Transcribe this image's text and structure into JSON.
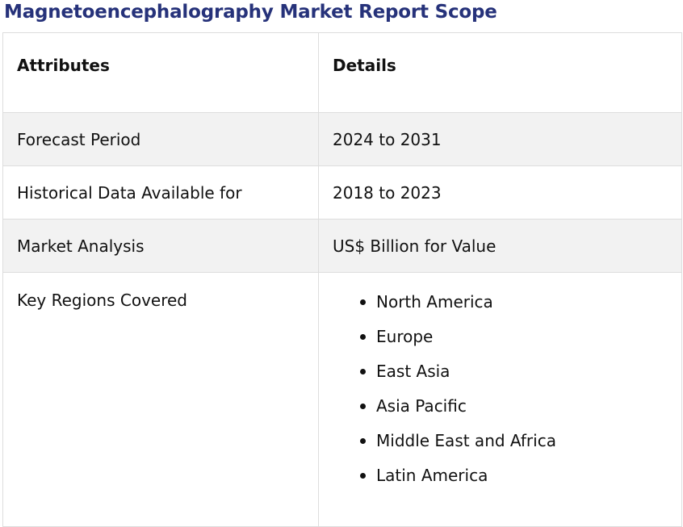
{
  "title": "Magnetoencephalography Market Report Scope",
  "table": {
    "headers": [
      "Attributes",
      "Details"
    ],
    "rows": [
      {
        "attribute": "Forecast Period",
        "detail": "2024 to 2031"
      },
      {
        "attribute": "Historical Data Available for",
        "detail": "2018 to 2023"
      },
      {
        "attribute": "Market Analysis",
        "detail": "US$ Billion for Value"
      }
    ],
    "regions": {
      "attribute": "Key Regions Covered",
      "items": [
        "North America",
        "Europe",
        "East Asia",
        "Asia Pacific",
        "Middle East and Africa",
        "Latin America"
      ]
    }
  },
  "colors": {
    "title": "#26327a",
    "shaded_row": "#f2f2f2",
    "border": "#dddddd"
  }
}
